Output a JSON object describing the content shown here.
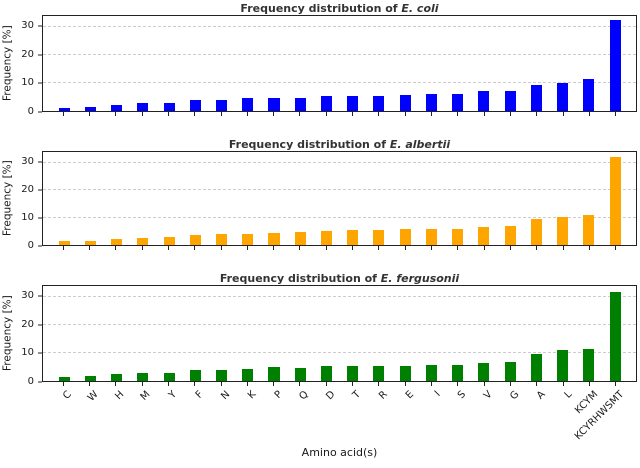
{
  "figure": {
    "xlabel": "Amino acid(s)",
    "background": "#ffffff",
    "axis_color": "#222222",
    "grid_color": "#cccccc"
  },
  "chart_data": [
    {
      "type": "bar",
      "title": "Frequency distribution of E. coli",
      "title_prefix": "Frequency distribution of ",
      "title_species_italic": "E. coli",
      "ylabel": "Frequency [%]",
      "xlabel": "Amino acid(s)",
      "color": "#0000FF",
      "ylim": [
        0,
        34
      ],
      "yticks": [
        0,
        10,
        20,
        30
      ],
      "grid": "horizontal-dashed",
      "legend": "none",
      "show_x_tick_labels": false,
      "categories": [
        "C",
        "W",
        "H",
        "M",
        "Y",
        "F",
        "N",
        "K",
        "P",
        "Q",
        "D",
        "T",
        "R",
        "E",
        "I",
        "S",
        "V",
        "G",
        "A",
        "L",
        "KCYM",
        "KCYRHWSMT"
      ],
      "values": [
        1.2,
        1.5,
        2.3,
        2.8,
        3.0,
        3.9,
        4.1,
        4.5,
        4.5,
        4.6,
        5.2,
        5.4,
        5.5,
        5.7,
        6.0,
        6.2,
        7.0,
        7.3,
        9.4,
        10.0,
        11.5,
        32.6
      ]
    },
    {
      "type": "bar",
      "title": "Frequency distribution of E. albertii",
      "title_prefix": "Frequency distribution of ",
      "title_species_italic": "E. albertii",
      "ylabel": "Frequency [%]",
      "xlabel": "Amino acid(s)",
      "color": "#FFA500",
      "ylim": [
        0,
        34
      ],
      "yticks": [
        0,
        10,
        20,
        30
      ],
      "grid": "horizontal-dashed",
      "legend": "none",
      "show_x_tick_labels": false,
      "categories": [
        "C",
        "W",
        "H",
        "M",
        "Y",
        "F",
        "N",
        "K",
        "P",
        "Q",
        "D",
        "T",
        "R",
        "E",
        "I",
        "S",
        "V",
        "G",
        "A",
        "L",
        "KCYM",
        "KCYRHWSMT"
      ],
      "values": [
        1.3,
        1.5,
        2.3,
        2.7,
        3.1,
        3.7,
        4.0,
        4.2,
        4.4,
        4.8,
        5.1,
        5.4,
        5.5,
        5.8,
        5.9,
        6.0,
        6.7,
        7.1,
        9.5,
        10.2,
        11.0,
        32.3
      ]
    },
    {
      "type": "bar",
      "title": "Frequency distribution of E. fergusonii",
      "title_prefix": "Frequency distribution of ",
      "title_species_italic": "E. fergusonii",
      "ylabel": "Frequency [%]",
      "xlabel": "Amino acid(s)",
      "color": "#008000",
      "ylim": [
        0,
        34
      ],
      "yticks": [
        0,
        10,
        20,
        30
      ],
      "grid": "horizontal-dashed",
      "legend": "none",
      "show_x_tick_labels": true,
      "categories": [
        "C",
        "W",
        "H",
        "M",
        "Y",
        "F",
        "N",
        "K",
        "P",
        "Q",
        "D",
        "T",
        "R",
        "E",
        "I",
        "S",
        "V",
        "G",
        "A",
        "L",
        "KCYM",
        "KCYRHWSMT"
      ],
      "values": [
        1.5,
        1.8,
        2.5,
        2.8,
        2.8,
        4.0,
        3.9,
        4.3,
        4.9,
        4.6,
        5.2,
        5.3,
        5.3,
        5.5,
        5.7,
        5.7,
        6.5,
        6.9,
        9.5,
        11.0,
        11.3,
        31.9
      ]
    }
  ]
}
